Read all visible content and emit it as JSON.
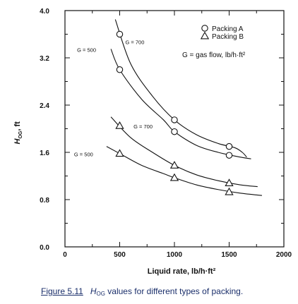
{
  "chart_data": {
    "type": "line",
    "xlabel": "Liquid rate, lb/h·ft²",
    "ylabel": "HOG, ft",
    "xlim": [
      0,
      2000
    ],
    "ylim": [
      0,
      4.0
    ],
    "xticks": [
      "0",
      "500",
      "1000",
      "1500",
      "2000"
    ],
    "yticks": [
      "0.0",
      "0.8",
      "1.6",
      "2.4",
      "3.2",
      "4.0"
    ],
    "grid": false,
    "legend_position": "top-right",
    "legend": [
      {
        "marker": "circle",
        "label": "Packing A"
      },
      {
        "marker": "triangle",
        "label": "Packing B"
      }
    ],
    "legend_note": "G = gas flow, lb/h·ft²",
    "series": [
      {
        "name": "Packing A, G = 700",
        "marker": "circle",
        "points": [
          {
            "x": 500,
            "y": 3.6
          },
          {
            "x": 1000,
            "y": 2.15
          },
          {
            "x": 1500,
            "y": 1.7
          }
        ],
        "curve": [
          [
            460,
            3.85
          ],
          [
            600,
            3.1
          ],
          [
            800,
            2.55
          ],
          [
            1000,
            2.15
          ],
          [
            1200,
            1.9
          ],
          [
            1400,
            1.75
          ],
          [
            1550,
            1.68
          ],
          [
            1620,
            1.6
          ],
          [
            1660,
            1.52
          ]
        ],
        "label": "G = 700"
      },
      {
        "name": "Packing A, G = 500",
        "marker": "circle",
        "points": [
          {
            "x": 500,
            "y": 3.0
          },
          {
            "x": 1000,
            "y": 1.95
          },
          {
            "x": 1500,
            "y": 1.55
          }
        ],
        "curve": [
          [
            420,
            3.35
          ],
          [
            500,
            3.0
          ],
          [
            700,
            2.5
          ],
          [
            900,
            2.15
          ],
          [
            1000,
            1.95
          ],
          [
            1200,
            1.72
          ],
          [
            1400,
            1.6
          ],
          [
            1600,
            1.52
          ],
          [
            1700,
            1.49
          ]
        ],
        "label": "G = 500"
      },
      {
        "name": "Packing B, G = 700",
        "marker": "triangle",
        "points": [
          {
            "x": 500,
            "y": 2.05
          },
          {
            "x": 1000,
            "y": 1.38
          },
          {
            "x": 1500,
            "y": 1.08
          }
        ],
        "curve": [
          [
            420,
            2.2
          ],
          [
            600,
            1.85
          ],
          [
            800,
            1.6
          ],
          [
            1000,
            1.38
          ],
          [
            1200,
            1.22
          ],
          [
            1400,
            1.12
          ],
          [
            1600,
            1.05
          ],
          [
            1760,
            1.02
          ]
        ],
        "label": "G = 700"
      },
      {
        "name": "Packing B, G = 500",
        "marker": "triangle",
        "points": [
          {
            "x": 500,
            "y": 1.58
          },
          {
            "x": 1000,
            "y": 1.17
          },
          {
            "x": 1500,
            "y": 0.93
          }
        ],
        "curve": [
          [
            380,
            1.7
          ],
          [
            500,
            1.58
          ],
          [
            700,
            1.38
          ],
          [
            900,
            1.24
          ],
          [
            1000,
            1.17
          ],
          [
            1200,
            1.05
          ],
          [
            1400,
            0.97
          ],
          [
            1600,
            0.91
          ],
          [
            1800,
            0.87
          ]
        ],
        "label": "G = 500"
      }
    ]
  },
  "caption": {
    "label": "Figure 5.11",
    "text_pre": "H",
    "text_sub": "OG",
    "text_post": " values for different types of packing."
  }
}
